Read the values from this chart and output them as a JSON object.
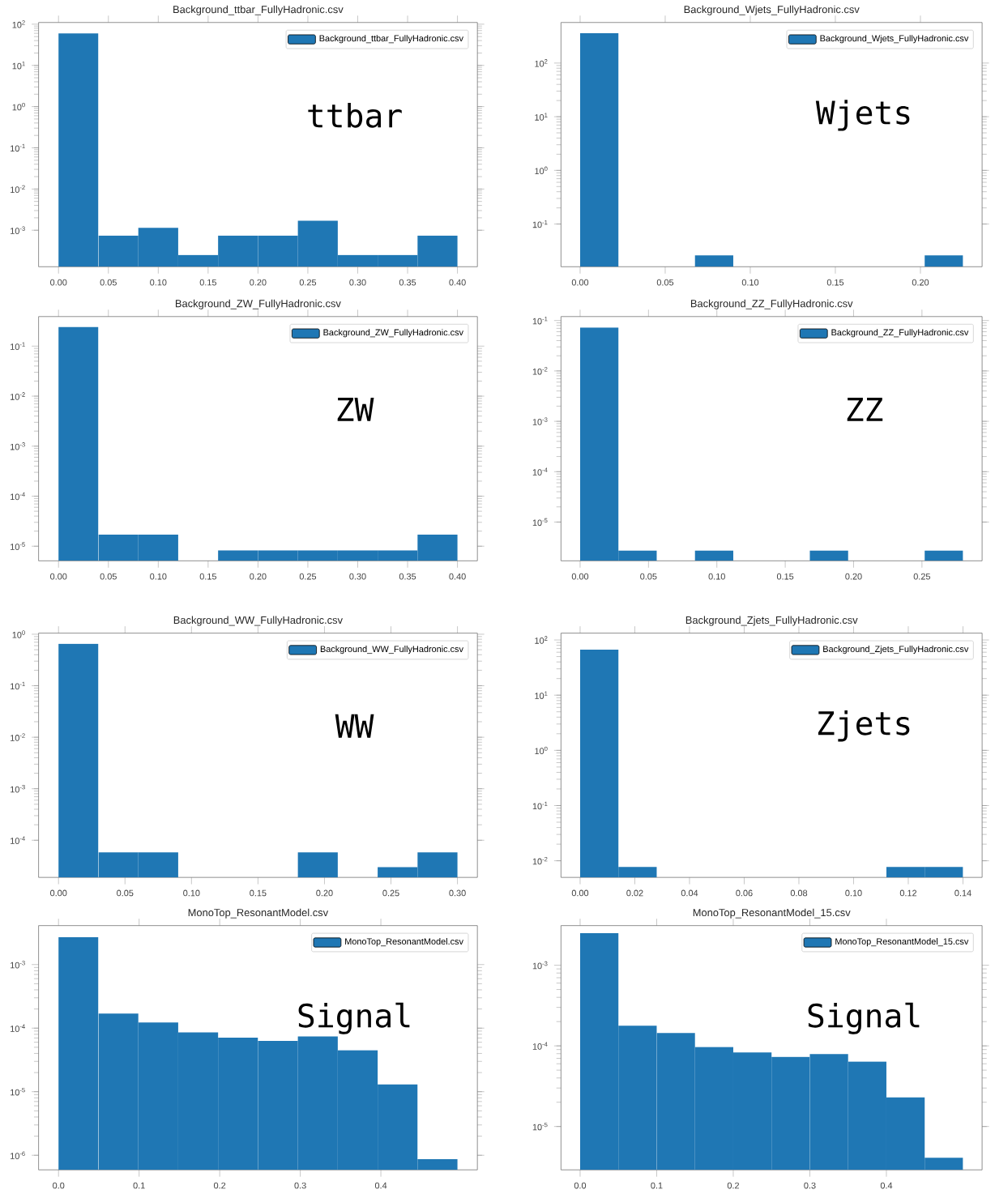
{
  "chart_data": [
    {
      "type": "histogram",
      "title": "Background_ttbar_FullyHadronic.csv",
      "log": "y",
      "legend": "top right",
      "annotations": [
        "ttbar"
      ],
      "bins": [
        0,
        0.04,
        0.08,
        0.12,
        0.16,
        0.2,
        0.24,
        0.28,
        0.32,
        0.36,
        0.4
      ],
      "series": [
        {
          "name": "Background_ttbar_FullyHadronic.csv",
          "color": "#1f77b4",
          "values": [
            60,
            0.00074,
            0.00115,
            0.00025,
            0.00074,
            0.00074,
            0.0017,
            0.00025,
            0.00025,
            0.00074
          ]
        }
      ],
      "xlim": [
        -0.02,
        0.42
      ],
      "xticks": [
        {
          "value": 0,
          "label": "0.00"
        },
        {
          "value": 0.05,
          "label": "0.05"
        },
        {
          "value": 0.1,
          "label": "0.10"
        },
        {
          "value": 0.15,
          "label": "0.15"
        },
        {
          "value": 0.2,
          "label": "0.20"
        },
        {
          "value": 0.25,
          "label": "0.25"
        },
        {
          "value": 0.3,
          "label": "0.30"
        },
        {
          "value": 0.35,
          "label": "0.35"
        },
        {
          "value": 0.4,
          "label": "0.40"
        }
      ],
      "ylim": [
        0.00013,
        110
      ],
      "yticks": [
        {
          "value": 0.001,
          "label": "10$^{-3}$"
        },
        {
          "value": 0.01,
          "label": "10$^{-2}$"
        },
        {
          "value": 0.1,
          "label": "10$^{-1}$"
        },
        {
          "value": 1,
          "label": "10$^{0}$"
        },
        {
          "value": 10,
          "label": "10$^{1}$"
        },
        {
          "value": 100,
          "label": "10$^{2}$"
        }
      ]
    },
    {
      "type": "histogram",
      "title": "Background_Wjets_FullyHadronic.csv",
      "log": "y",
      "legend": "top right",
      "annotations": [
        "Wjets"
      ],
      "bins": [
        0,
        0.0225,
        0.045,
        0.0675,
        0.09,
        0.1125,
        0.135,
        0.1575,
        0.18,
        0.2025,
        0.225
      ],
      "series": [
        {
          "name": "Background_Wjets_FullyHadronic.csv",
          "color": "#1f77b4",
          "values": [
            360,
            null,
            null,
            0.026,
            null,
            null,
            null,
            null,
            null,
            0.026
          ]
        }
      ],
      "xlim": [
        -0.01125,
        0.23625
      ],
      "xticks": [
        {
          "value": 0,
          "label": "0.00"
        },
        {
          "value": 0.05,
          "label": "0.05"
        },
        {
          "value": 0.1,
          "label": "0.10"
        },
        {
          "value": 0.15,
          "label": "0.15"
        },
        {
          "value": 0.2,
          "label": "0.20"
        }
      ],
      "ylim": [
        0.016,
        570
      ],
      "yticks": [
        {
          "value": 0.1,
          "label": "10$^{-1}$"
        },
        {
          "value": 1,
          "label": "10$^{0}$"
        },
        {
          "value": 10,
          "label": "10$^{1}$"
        },
        {
          "value": 100,
          "label": "10$^{2}$"
        }
      ]
    },
    {
      "type": "histogram",
      "title": "Background_ZW_FullyHadronic.csv",
      "log": "y",
      "legend": "top right",
      "annotations": [
        "ZW"
      ],
      "bins": [
        0,
        0.04,
        0.08,
        0.12,
        0.16,
        0.2,
        0.24,
        0.28,
        0.32,
        0.36,
        0.4
      ],
      "series": [
        {
          "name": "Background_ZW_FullyHadronic.csv",
          "color": "#1f77b4",
          "values": [
            0.24,
            1.7e-05,
            1.7e-05,
            null,
            8.2e-06,
            8.2e-06,
            8.2e-06,
            8.2e-06,
            8.2e-06,
            1.7e-05
          ]
        }
      ],
      "xlim": [
        -0.02,
        0.42
      ],
      "xticks": [
        {
          "value": 0,
          "label": "0.00"
        },
        {
          "value": 0.05,
          "label": "0.05"
        },
        {
          "value": 0.1,
          "label": "0.10"
        },
        {
          "value": 0.15,
          "label": "0.15"
        },
        {
          "value": 0.2,
          "label": "0.20"
        },
        {
          "value": 0.25,
          "label": "0.25"
        },
        {
          "value": 0.3,
          "label": "0.30"
        },
        {
          "value": 0.35,
          "label": "0.35"
        },
        {
          "value": 0.4,
          "label": "0.40"
        }
      ],
      "ylim": [
        5.1e-06,
        0.39
      ],
      "yticks": [
        {
          "value": 1e-05,
          "label": "10$^{-5}$"
        },
        {
          "value": 0.0001,
          "label": "10$^{-4}$"
        },
        {
          "value": 0.001,
          "label": "10$^{-3}$"
        },
        {
          "value": 0.01,
          "label": "10$^{-2}$"
        },
        {
          "value": 0.1,
          "label": "10$^{-1}$"
        }
      ]
    },
    {
      "type": "histogram",
      "title": "Background_ZZ_FullyHadronic.csv",
      "log": "y",
      "legend": "top right",
      "annotations": [
        "ZZ"
      ],
      "bins": [
        0,
        0.028,
        0.056,
        0.084,
        0.112,
        0.14,
        0.168,
        0.196,
        0.224,
        0.252,
        0.28
      ],
      "series": [
        {
          "name": "Background_ZZ_FullyHadronic.csv",
          "color": "#1f77b4",
          "values": [
            0.073,
            2.7e-06,
            null,
            2.7e-06,
            null,
            null,
            2.7e-06,
            null,
            null,
            2.7e-06
          ]
        }
      ],
      "xlim": [
        -0.014,
        0.294
      ],
      "xticks": [
        {
          "value": 0,
          "label": "0.00"
        },
        {
          "value": 0.05,
          "label": "0.05"
        },
        {
          "value": 0.1,
          "label": "0.10"
        },
        {
          "value": 0.15,
          "label": "0.15"
        },
        {
          "value": 0.2,
          "label": "0.20"
        },
        {
          "value": 0.25,
          "label": "0.25"
        }
      ],
      "ylim": [
        1.7e-06,
        0.12
      ],
      "yticks": [
        {
          "value": 1e-05,
          "label": "10$^{-5}$"
        },
        {
          "value": 0.0001,
          "label": "10$^{-4}$"
        },
        {
          "value": 0.001,
          "label": "10$^{-3}$"
        },
        {
          "value": 0.01,
          "label": "10$^{-2}$"
        },
        {
          "value": 0.1,
          "label": "10$^{-1}$"
        }
      ]
    },
    {
      "type": "histogram",
      "title": "Background_WW_FullyHadronic.csv",
      "log": "y",
      "legend": "top right",
      "annotations": [
        "WW"
      ],
      "bins": [
        0,
        0.03,
        0.06,
        0.09,
        0.12,
        0.15,
        0.18,
        0.21,
        0.24,
        0.27,
        0.3
      ],
      "series": [
        {
          "name": "Background_WW_FullyHadronic.csv",
          "color": "#1f77b4",
          "values": [
            0.65,
            5.8e-05,
            5.8e-05,
            null,
            null,
            null,
            5.8e-05,
            null,
            3e-05,
            5.8e-05
          ]
        }
      ],
      "xlim": [
        -0.015,
        0.315
      ],
      "xticks": [
        {
          "value": 0,
          "label": "0.00"
        },
        {
          "value": 0.05,
          "label": "0.05"
        },
        {
          "value": 0.1,
          "label": "0.10"
        },
        {
          "value": 0.15,
          "label": "0.15"
        },
        {
          "value": 0.2,
          "label": "0.20"
        },
        {
          "value": 0.25,
          "label": "0.25"
        },
        {
          "value": 0.3,
          "label": "0.30"
        }
      ],
      "ylim": [
        1.9e-05,
        1.05
      ],
      "yticks": [
        {
          "value": 0.0001,
          "label": "10$^{-4}$"
        },
        {
          "value": 0.001,
          "label": "10$^{-3}$"
        },
        {
          "value": 0.01,
          "label": "10$^{-2}$"
        },
        {
          "value": 0.1,
          "label": "10$^{-1}$"
        },
        {
          "value": 1,
          "label": "10$^{0}$"
        }
      ]
    },
    {
      "type": "histogram",
      "title": "Background_Zjets_FullyHadronic.csv",
      "log": "y",
      "legend": "top right",
      "annotations": [
        "Zjets"
      ],
      "bins": [
        0,
        0.014,
        0.028,
        0.042,
        0.056,
        0.07,
        0.084,
        0.098,
        0.112,
        0.126,
        0.14
      ],
      "series": [
        {
          "name": "Background_Zjets_FullyHadronic.csv",
          "color": "#1f77b4",
          "values": [
            67,
            0.0077,
            null,
            null,
            null,
            null,
            null,
            null,
            0.0077,
            0.0077
          ]
        }
      ],
      "xlim": [
        -0.007,
        0.147
      ],
      "xticks": [
        {
          "value": 0,
          "label": "0.00"
        },
        {
          "value": 0.02,
          "label": "0.02"
        },
        {
          "value": 0.04,
          "label": "0.04"
        },
        {
          "value": 0.06,
          "label": "0.06"
        },
        {
          "value": 0.08,
          "label": "0.08"
        },
        {
          "value": 0.1,
          "label": "0.10"
        },
        {
          "value": 0.12,
          "label": "0.12"
        },
        {
          "value": 0.14,
          "label": "0.14"
        }
      ],
      "ylim": [
        0.005,
        133
      ],
      "yticks": [
        {
          "value": 0.01,
          "label": "10$^{-2}$"
        },
        {
          "value": 0.1,
          "label": "10$^{-1}$"
        },
        {
          "value": 1,
          "label": "10$^{0}$"
        },
        {
          "value": 10,
          "label": "10$^{1}$"
        },
        {
          "value": 100,
          "label": "10$^{2}$"
        }
      ]
    },
    {
      "type": "histogram",
      "title": "MonoTop_ResonantModel.csv",
      "log": "y",
      "legend": "top right",
      "annotations": [
        "Signal"
      ],
      "bins": [
        0,
        0.0495,
        0.099,
        0.1485,
        0.198,
        0.2475,
        0.297,
        0.3465,
        0.396,
        0.4455,
        0.495
      ],
      "series": [
        {
          "name": "MonoTop_ResonantModel.csv",
          "color": "#1f77b4",
          "values": [
            0.0027,
            0.00017,
            0.000123,
            8.6e-05,
            7.1e-05,
            6.3e-05,
            7.4e-05,
            4.5e-05,
            1.3e-05,
            8.7e-07
          ]
        }
      ],
      "xlim": [
        -0.02475,
        0.51975
      ],
      "xticks": [
        {
          "value": 0,
          "label": "0.0"
        },
        {
          "value": 0.1,
          "label": "0.1"
        },
        {
          "value": 0.2,
          "label": "0.2"
        },
        {
          "value": 0.3,
          "label": "0.3"
        },
        {
          "value": 0.4,
          "label": "0.4"
        }
      ],
      "ylim": [
        5.9e-07,
        0.0041
      ],
      "yticks": [
        {
          "value": 1e-06,
          "label": "10$^{-6}$"
        },
        {
          "value": 1e-05,
          "label": "10$^{-5}$"
        },
        {
          "value": 0.0001,
          "label": "10$^{-4}$"
        },
        {
          "value": 0.001,
          "label": "10$^{-3}$"
        }
      ]
    },
    {
      "type": "histogram",
      "title": "MonoTop_ResonantModel_15.csv",
      "log": "y",
      "legend": "top right",
      "annotations": [
        "Signal"
      ],
      "bins": [
        0,
        0.05,
        0.1,
        0.15,
        0.2,
        0.25,
        0.3,
        0.35,
        0.4,
        0.45,
        0.5
      ],
      "series": [
        {
          "name": "MonoTop_ResonantModel_15.csv",
          "color": "#1f77b4",
          "values": [
            0.0025,
            0.000178,
            0.000144,
            9.7e-05,
            8.3e-05,
            7.3e-05,
            7.9e-05,
            6.4e-05,
            2.3e-05,
            4.1e-06
          ]
        }
      ],
      "xlim": [
        -0.025,
        0.525
      ],
      "xticks": [
        {
          "value": 0,
          "label": "0.0"
        },
        {
          "value": 0.1,
          "label": "0.1"
        },
        {
          "value": 0.2,
          "label": "0.2"
        },
        {
          "value": 0.3,
          "label": "0.3"
        },
        {
          "value": 0.4,
          "label": "0.4"
        }
      ],
      "ylim": [
        2.9e-06,
        0.0031
      ],
      "yticks": [
        {
          "value": 1e-05,
          "label": "10$^{-5}$"
        },
        {
          "value": 0.0001,
          "label": "10$^{-4}$"
        },
        {
          "value": 0.001,
          "label": "10$^{-3}$"
        }
      ]
    }
  ]
}
